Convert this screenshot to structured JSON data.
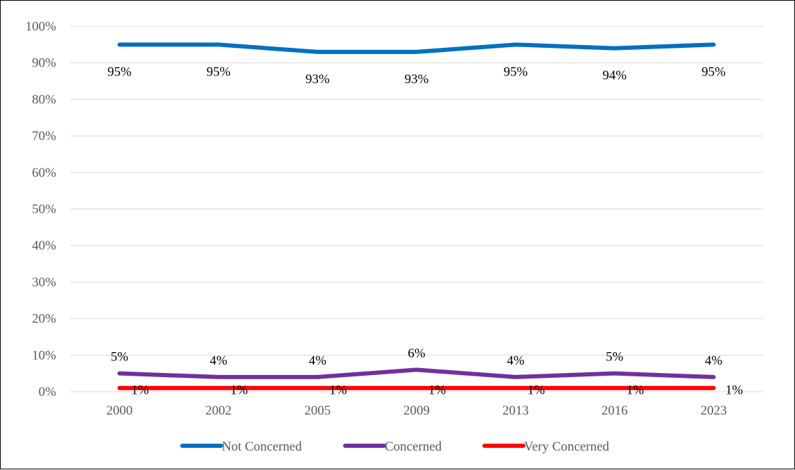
{
  "chart_data": {
    "type": "line",
    "categories": [
      "2000",
      "2002",
      "2005",
      "2009",
      "2013",
      "2016",
      "2023"
    ],
    "ylim": [
      0,
      100
    ],
    "yticks": [
      "0%",
      "10%",
      "20%",
      "30%",
      "40%",
      "50%",
      "60%",
      "70%",
      "80%",
      "90%",
      "100%"
    ],
    "grid": true,
    "legend_position": "bottom",
    "series": [
      {
        "name": "Not Concerned",
        "color": "#0070c0",
        "values": [
          95,
          95,
          93,
          93,
          95,
          94,
          95
        ],
        "labels": [
          "95%",
          "95%",
          "93%",
          "93%",
          "95%",
          "94%",
          "95%"
        ]
      },
      {
        "name": "Concerned",
        "color": "#7030a0",
        "values": [
          5,
          4,
          4,
          6,
          4,
          5,
          4
        ],
        "labels": [
          "5%",
          "4%",
          "4%",
          "6%",
          "4%",
          "5%",
          "4%"
        ]
      },
      {
        "name": "Very Concerned",
        "color": "#ff0000",
        "values": [
          1,
          1,
          1,
          1,
          1,
          1,
          1
        ],
        "labels": [
          "1%",
          "1%",
          "1%",
          "1%",
          "1%",
          "1%",
          "1%"
        ]
      }
    ]
  }
}
